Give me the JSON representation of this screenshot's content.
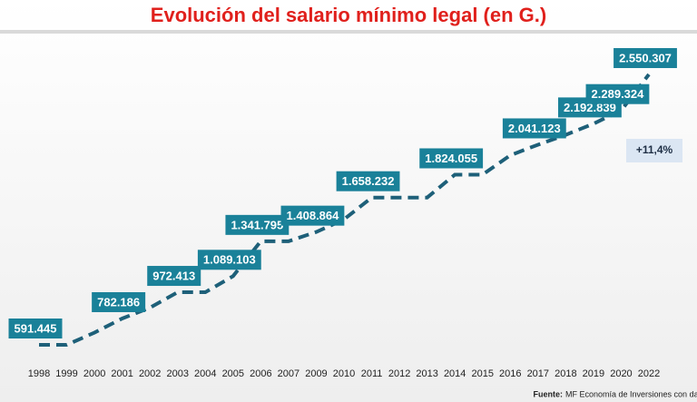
{
  "chart_data": {
    "type": "line",
    "title": "Evolución del salario mínimo legal (en G.)",
    "categories": [
      "1998",
      "1999",
      "2000",
      "2001",
      "2002",
      "2003",
      "2004",
      "2005",
      "2006",
      "2007",
      "2009",
      "2010",
      "2011",
      "2012",
      "2013",
      "2014",
      "2015",
      "2016",
      "2017",
      "2018",
      "2019",
      "2020",
      "2022"
    ],
    "series": [
      {
        "name": "Salario mínimo",
        "color": "#1e6079",
        "values": [
          591445,
          591445,
          680000,
          782186,
          860000,
          972413,
          972413,
          1089103,
          1341795,
          1341795,
          1408864,
          1500000,
          1658232,
          1658232,
          1658232,
          1824055,
          1824055,
          1964507,
          2041123,
          2112562,
          2192839,
          2289324,
          2550307
        ],
        "value_labels": [
          "591.445",
          null,
          null,
          "782.186",
          null,
          "972.413",
          null,
          "1.089.103",
          "1.341.795",
          null,
          "1.408.864",
          null,
          "1.658.232",
          null,
          null,
          "1.824.055",
          null,
          null,
          "2.041.123",
          null,
          "2.192.839",
          "2.289.324",
          "2.550.307"
        ]
      }
    ],
    "label_color": "#1a8199",
    "annotation": "+11,4%",
    "source_label": "Fuente:",
    "source": "MF Economía de Inversiones con datos del INE."
  }
}
